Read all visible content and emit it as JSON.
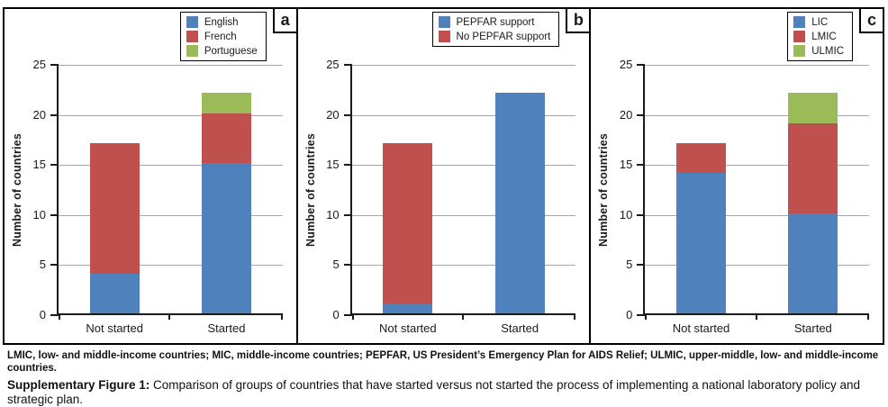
{
  "caption": {
    "abbreviations": "LMIC, low- and middle-income countries; MIC, middle-income countries; PEPFAR, US President’s Emergency Plan for AIDS Relief; ULMIC, upper-middle, low- and middle-income countries.",
    "label": "Supplementary Figure 1:",
    "text": " Comparison of groups of countries that have started versus not started the process of implementing a national laboratory policy and strategic plan."
  },
  "colors": {
    "blue": "#4F81BD",
    "red": "#C0504D",
    "green": "#9BBB59",
    "grid": "#a6a6a6",
    "axis": "#1a1a1a"
  },
  "chart_data": [
    {
      "type": "bar",
      "stacked": true,
      "panel_label": "a",
      "categories": [
        "Not started",
        "Started"
      ],
      "series": [
        {
          "name": "English",
          "color": "#4F81BD",
          "values": [
            4,
            15
          ]
        },
        {
          "name": "French",
          "color": "#C0504D",
          "values": [
            13,
            5
          ]
        },
        {
          "name": "Portuguese",
          "color": "#9BBB59",
          "values": [
            0,
            2
          ]
        }
      ],
      "xlabel": "",
      "ylabel": "Number of countries",
      "ylim": [
        0,
        25
      ],
      "yticks": [
        0,
        5,
        10,
        15,
        20,
        25
      ],
      "grid": true,
      "legend_position": "top-right"
    },
    {
      "type": "bar",
      "stacked": true,
      "panel_label": "b",
      "categories": [
        "Not started",
        "Started"
      ],
      "series": [
        {
          "name": "PEPFAR support",
          "color": "#4F81BD",
          "values": [
            1,
            22
          ]
        },
        {
          "name": "No PEPFAR support",
          "color": "#C0504D",
          "values": [
            16,
            0
          ]
        }
      ],
      "xlabel": "",
      "ylabel": "Number of countries",
      "ylim": [
        0,
        25
      ],
      "yticks": [
        0,
        5,
        10,
        15,
        20,
        25
      ],
      "grid": true,
      "legend_position": "top-right"
    },
    {
      "type": "bar",
      "stacked": true,
      "panel_label": "c",
      "categories": [
        "Not started",
        "Started"
      ],
      "series": [
        {
          "name": "LIC",
          "color": "#4F81BD",
          "values": [
            14,
            10
          ]
        },
        {
          "name": "LMIC",
          "color": "#C0504D",
          "values": [
            3,
            9
          ]
        },
        {
          "name": "ULMIC",
          "color": "#9BBB59",
          "values": [
            0,
            3
          ]
        }
      ],
      "xlabel": "",
      "ylabel": "Number of countries",
      "ylim": [
        0,
        25
      ],
      "yticks": [
        0,
        5,
        10,
        15,
        20,
        25
      ],
      "grid": true,
      "legend_position": "top-right"
    }
  ]
}
